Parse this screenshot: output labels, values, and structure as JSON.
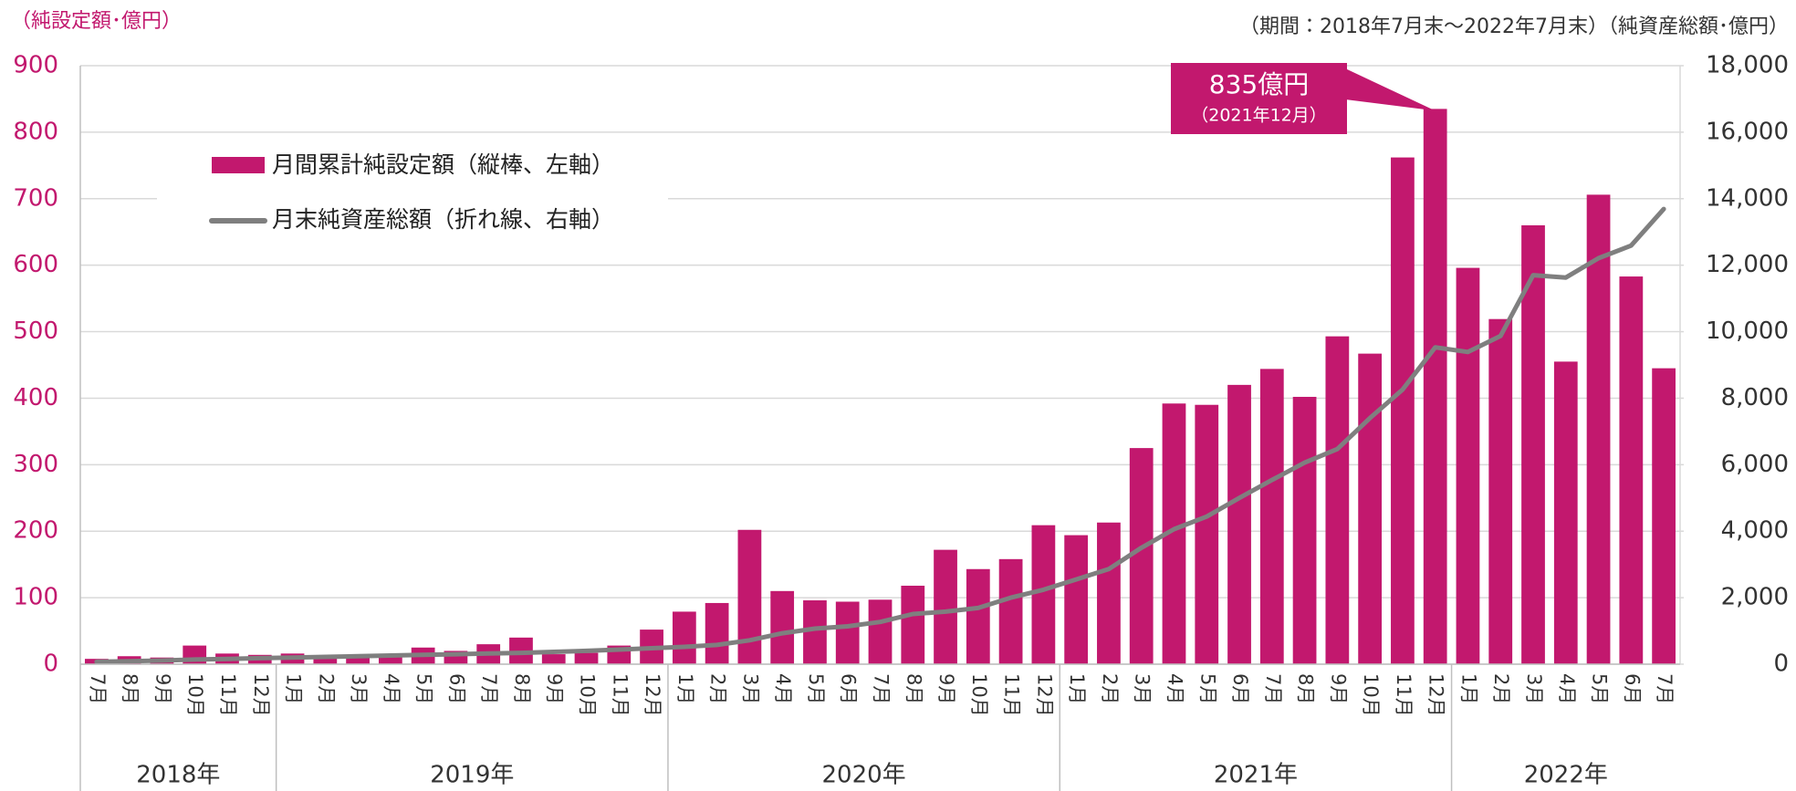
{
  "chart_data": {
    "type": "bar",
    "y_label": "（純設定額･億円）",
    "y2_label": "（期間：2018年7月末～2022年7月末）（純資産総額･億円）",
    "categories": [
      "7月",
      "8月",
      "9月",
      "10月",
      "11月",
      "12月",
      "1月",
      "2月",
      "3月",
      "4月",
      "5月",
      "6月",
      "7月",
      "8月",
      "9月",
      "10月",
      "11月",
      "12月",
      "1月",
      "2月",
      "3月",
      "4月",
      "5月",
      "6月",
      "7月",
      "8月",
      "9月",
      "10月",
      "11月",
      "12月",
      "1月",
      "2月",
      "3月",
      "4月",
      "5月",
      "6月",
      "7月",
      "8月",
      "9月",
      "10月",
      "11月",
      "12月",
      "1月",
      "2月",
      "3月",
      "4月",
      "5月",
      "6月",
      "7月"
    ],
    "years": [
      "2018年",
      "2019年",
      "2020年",
      "2021年",
      "2022年"
    ],
    "series": [
      {
        "name": "月間累計純設定額（縦棒、左軸）",
        "type": "bar",
        "axis": "y",
        "color": "#c2186e",
        "values": [
          8,
          12,
          10,
          28,
          16,
          14,
          16,
          12,
          12,
          15,
          25,
          20,
          30,
          40,
          15,
          17,
          28,
          52,
          79,
          92,
          202,
          110,
          96,
          94,
          97,
          118,
          172,
          143,
          158,
          209,
          194,
          213,
          325,
          392,
          390,
          420,
          444,
          402,
          493,
          467,
          762,
          835,
          596,
          519,
          660,
          455,
          706,
          583,
          445
        ]
      },
      {
        "name": "月末純資産総額（折れ線、右軸）",
        "type": "line",
        "axis": "y2",
        "color": "#7f7f7f",
        "values": [
          70,
          90,
          110,
          140,
          160,
          180,
          200,
          220,
          240,
          260,
          280,
          300,
          320,
          340,
          370,
          400,
          440,
          480,
          520,
          580,
          720,
          930,
          1070,
          1140,
          1270,
          1510,
          1580,
          1690,
          2000,
          2240,
          2550,
          2860,
          3500,
          4060,
          4440,
          5000,
          5540,
          6060,
          6470,
          7400,
          8260,
          9530,
          9390,
          9870,
          11700,
          11630,
          12210,
          12590,
          13690
        ]
      }
    ],
    "annotation": {
      "label": "835億円",
      "sublabel": "（2021年12月）"
    },
    "ylim": [
      0,
      900
    ],
    "yticks": [
      0,
      100,
      200,
      300,
      400,
      500,
      600,
      700,
      800,
      900
    ],
    "y2lim": [
      0,
      18000
    ],
    "y2ticks": [
      0,
      {
        "value": 2000,
        "label": "2,000"
      },
      {
        "value": 4000,
        "label": "4,000"
      },
      {
        "value": 6000,
        "label": "6,000"
      },
      {
        "value": 8000,
        "label": "8,000"
      },
      {
        "value": 10000,
        "label": "10,000"
      },
      {
        "value": 12000,
        "label": "12,000"
      },
      {
        "value": 14000,
        "label": "14,000"
      },
      {
        "value": 16000,
        "label": "16,000"
      },
      {
        "value": 18000,
        "label": "18,000"
      }
    ],
    "grid": true,
    "legend": "upper left"
  }
}
